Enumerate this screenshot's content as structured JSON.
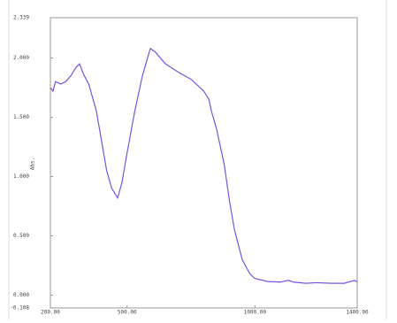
{
  "chart_data": {
    "type": "line",
    "y_label": "Abs.",
    "x": [
      200,
      210,
      220,
      240,
      260,
      280,
      300,
      314,
      330,
      350,
      380,
      400,
      420,
      440,
      463,
      480,
      500,
      530,
      560,
      580,
      591,
      610,
      650,
      700,
      750,
      800,
      820,
      830,
      850,
      880,
      900,
      920,
      950,
      980,
      1000,
      1050,
      1100,
      1131,
      1150,
      1200,
      1241,
      1300,
      1350,
      1390,
      1400
    ],
    "series": [
      {
        "name": "Abs.",
        "color": "#7a52e0",
        "values": [
          1.75,
          1.72,
          1.8,
          1.78,
          1.8,
          1.85,
          1.92,
          1.95,
          1.86,
          1.78,
          1.55,
          1.3,
          1.05,
          0.9,
          0.82,
          0.95,
          1.2,
          1.55,
          1.85,
          2.0,
          2.08,
          2.05,
          1.95,
          1.88,
          1.82,
          1.72,
          1.65,
          1.55,
          1.4,
          1.1,
          0.8,
          0.55,
          0.3,
          0.18,
          0.14,
          0.115,
          0.11,
          0.125,
          0.11,
          0.1,
          0.105,
          0.1,
          0.1,
          0.125,
          0.11
        ]
      }
    ],
    "xlim": [
      200,
      1400
    ],
    "xticks": [
      {
        "value": 200,
        "label": "200.00"
      },
      {
        "value": 500,
        "label": "500.00"
      },
      {
        "value": 1000,
        "label": "1000.00"
      },
      {
        "value": 1400,
        "label": "1400.00"
      }
    ],
    "ylim": [
      -0.108,
      2.339
    ],
    "yticks": [
      -0.108,
      {
        "value": 0,
        "label": "0.000"
      },
      {
        "value": 0.5,
        "label": "0.500"
      },
      {
        "value": 1,
        "label": "1.000"
      },
      {
        "value": 1.5,
        "label": "1.500"
      },
      {
        "value": 2,
        "label": "2.000"
      },
      2.339
    ],
    "grid": false
  }
}
